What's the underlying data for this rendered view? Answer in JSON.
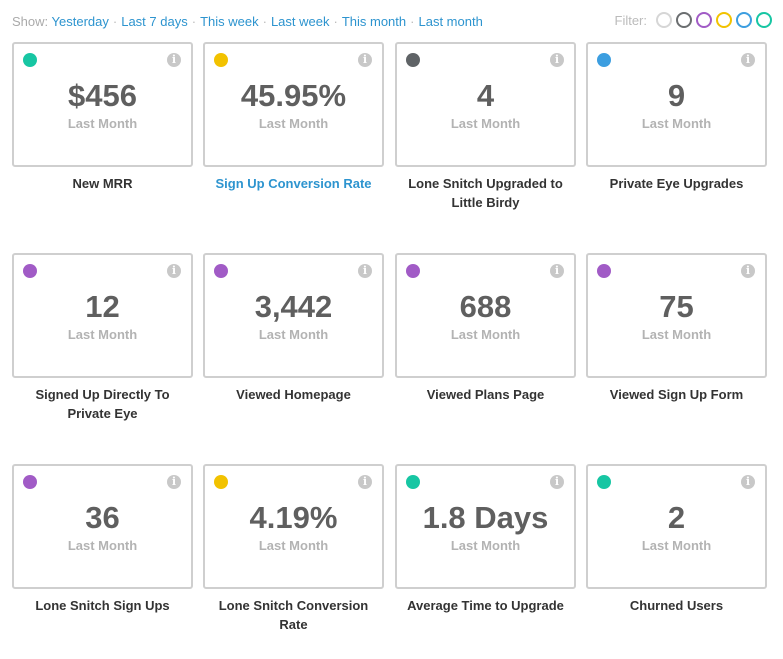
{
  "filters": {
    "show_label": "Show:",
    "ranges": [
      "Yesterday",
      "Last 7 days",
      "This week",
      "Last week",
      "This month",
      "Last month"
    ],
    "separator": "·",
    "filter_label": "Filter:",
    "colors": [
      "#d6d6d6",
      "#6b6e70",
      "#a15bc6",
      "#f2c200",
      "#3c9ee0",
      "#17c6a3"
    ]
  },
  "metrics": [
    {
      "value": "$456",
      "period": "Last Month",
      "title": "New MRR",
      "color": "#17c6a3",
      "link": false
    },
    {
      "value": "45.95%",
      "period": "Last Month",
      "title": "Sign Up Conversion Rate",
      "color": "#f2c200",
      "link": true
    },
    {
      "value": "4",
      "period": "Last Month",
      "title": "Lone Snitch Upgraded to Little Birdy",
      "color": "#5f6366",
      "link": false
    },
    {
      "value": "9",
      "period": "Last Month",
      "title": "Private Eye Upgrades",
      "color": "#3c9ee0",
      "link": false
    },
    {
      "value": "12",
      "period": "Last Month",
      "title": "Signed Up Directly To Private Eye",
      "color": "#a15bc6",
      "link": false
    },
    {
      "value": "3,442",
      "period": "Last Month",
      "title": "Viewed Homepage",
      "color": "#a15bc6",
      "link": false
    },
    {
      "value": "688",
      "period": "Last Month",
      "title": "Viewed Plans Page",
      "color": "#a15bc6",
      "link": false
    },
    {
      "value": "75",
      "period": "Last Month",
      "title": "Viewed Sign Up Form",
      "color": "#a15bc6",
      "link": false
    },
    {
      "value": "36",
      "period": "Last Month",
      "title": "Lone Snitch Sign Ups",
      "color": "#a15bc6",
      "link": false
    },
    {
      "value": "4.19%",
      "period": "Last Month",
      "title": "Lone Snitch Conversion Rate",
      "color": "#f2c200",
      "link": false
    },
    {
      "value": "1.8 Days",
      "period": "Last Month",
      "title": "Average Time to Upgrade",
      "color": "#17c6a3",
      "link": false
    },
    {
      "value": "2",
      "period": "Last Month",
      "title": "Churned Users",
      "color": "#17c6a3",
      "link": false
    }
  ]
}
